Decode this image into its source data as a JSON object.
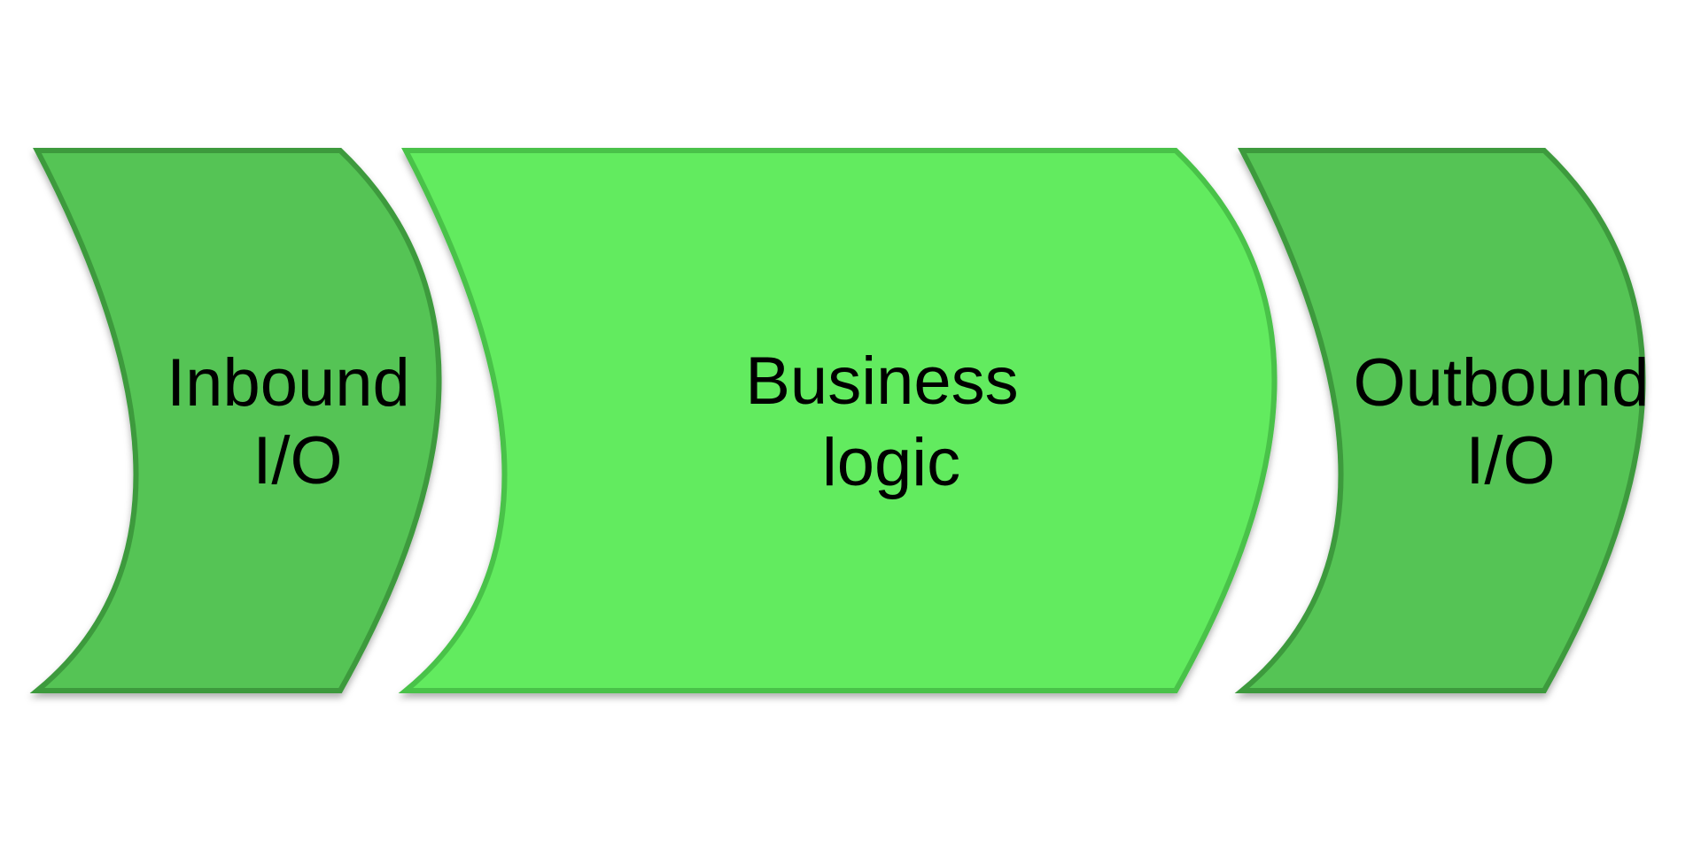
{
  "stages": [
    {
      "lines": [
        "Inbound",
        "I/O"
      ],
      "fill": "#54C454",
      "stroke": "#3E9A3E"
    },
    {
      "lines": [
        "Business",
        "logic"
      ],
      "fill": "#62EB5E",
      "stroke": "#48C248"
    },
    {
      "lines": [
        "Outbound",
        "I/O"
      ],
      "fill": "#54C454",
      "stroke": "#3E9A3E"
    }
  ]
}
